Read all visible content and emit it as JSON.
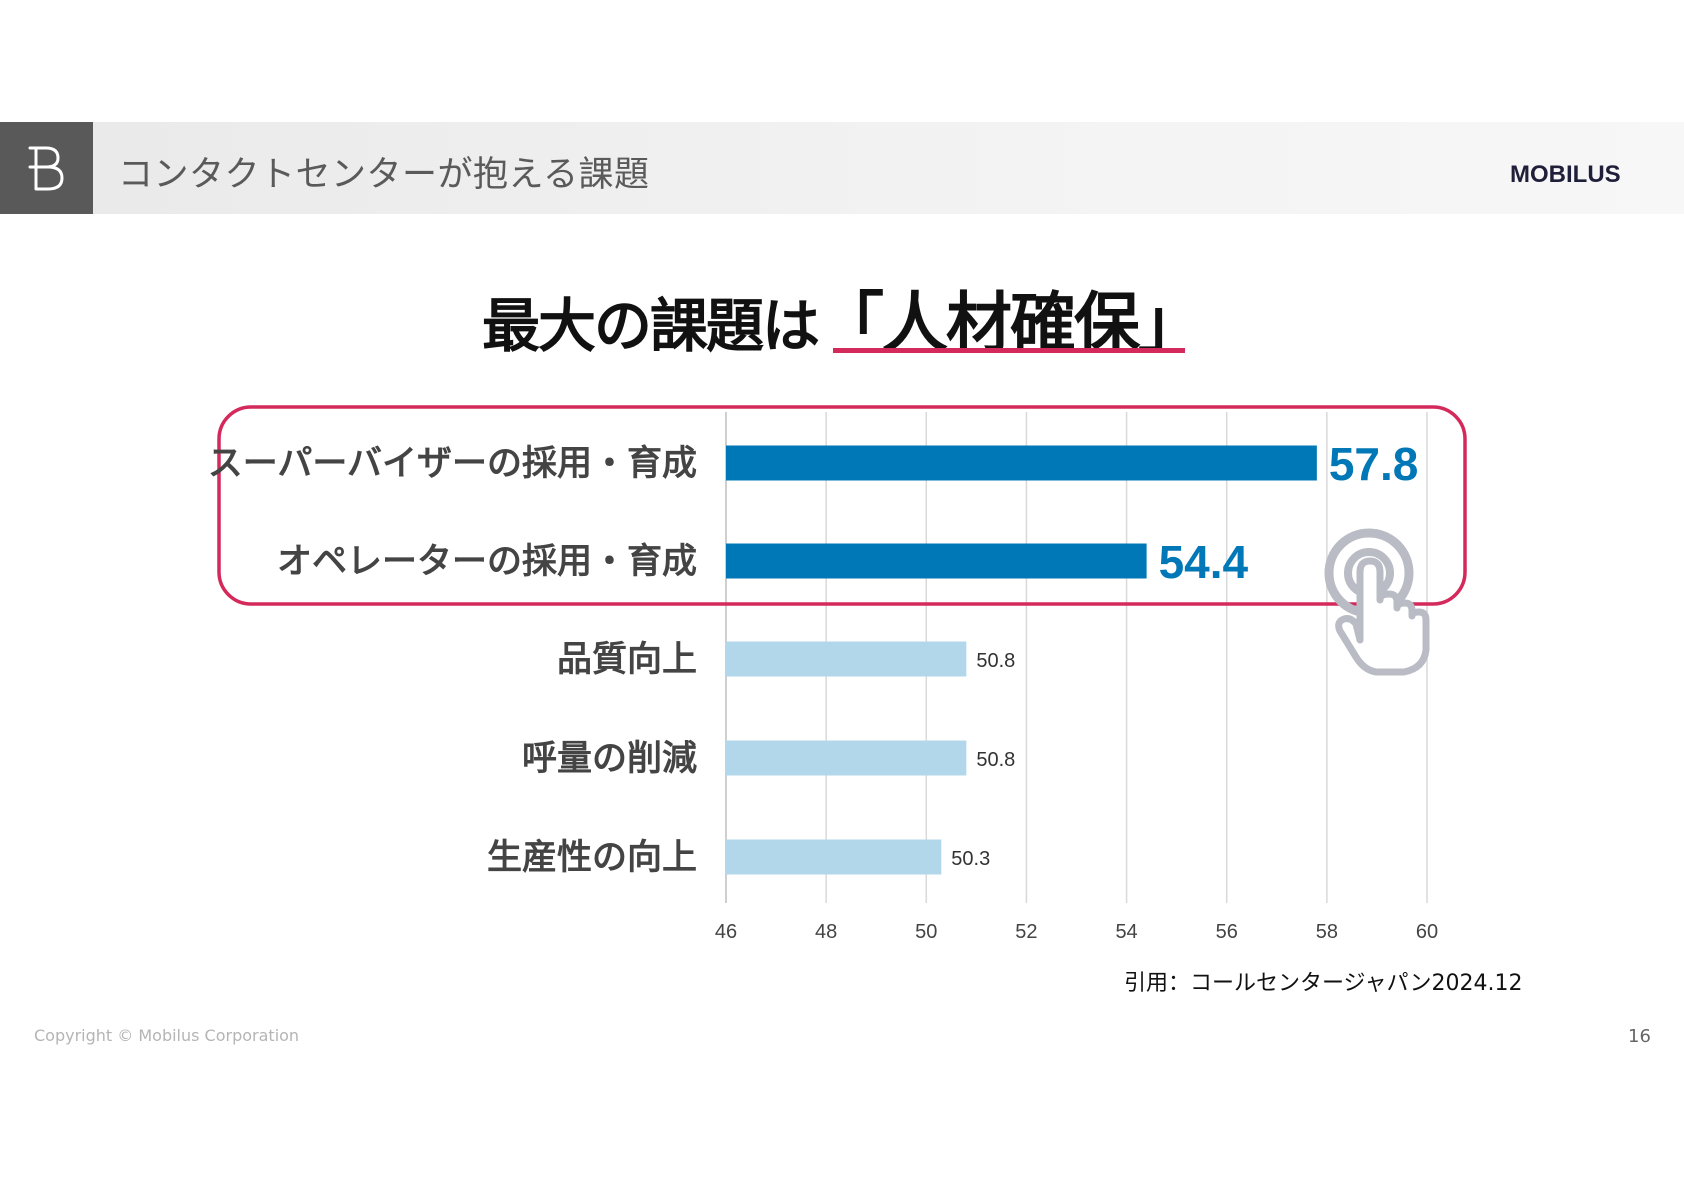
{
  "header": {
    "section_icon": "b-letter-icon",
    "title": "コンタクトセンターが抱える課題",
    "brand": "MOBILUS"
  },
  "headline": {
    "prefix": "最大の課題は",
    "emphasis": "「人材確保」",
    "underline_color": "#d4295b"
  },
  "chart_data": {
    "type": "bar",
    "orientation": "horizontal",
    "categories": [
      "スーパーバイザーの採用・育成",
      "オペレーターの採用・育成",
      "品質向上",
      "呼量の削減",
      "生産性の向上"
    ],
    "values": [
      57.8,
      54.4,
      50.8,
      50.8,
      50.3
    ],
    "value_labels": [
      "57.8",
      "54.4",
      "50.8",
      "50.8",
      "50.3"
    ],
    "highlighted": [
      true,
      true,
      false,
      false,
      false
    ],
    "xlim": [
      46,
      60
    ],
    "xticks": [
      46,
      48,
      50,
      52,
      54,
      56,
      58,
      60
    ],
    "xtick_labels": [
      "46",
      "48",
      "50",
      "52",
      "54",
      "56",
      "58",
      "60"
    ],
    "grid": "vertical",
    "colors": {
      "highlight": "#0077b6",
      "normal": "#b3d7ea",
      "frame": "#d4295b"
    },
    "title": "",
    "xlabel": "",
    "ylabel": ""
  },
  "annotation": {
    "icon": "pointer-hand-icon"
  },
  "footer": {
    "source": "引用：コールセンタージャパン2024.12",
    "copyright": "Copyright © Mobilus Corporation",
    "page_number": "16"
  }
}
